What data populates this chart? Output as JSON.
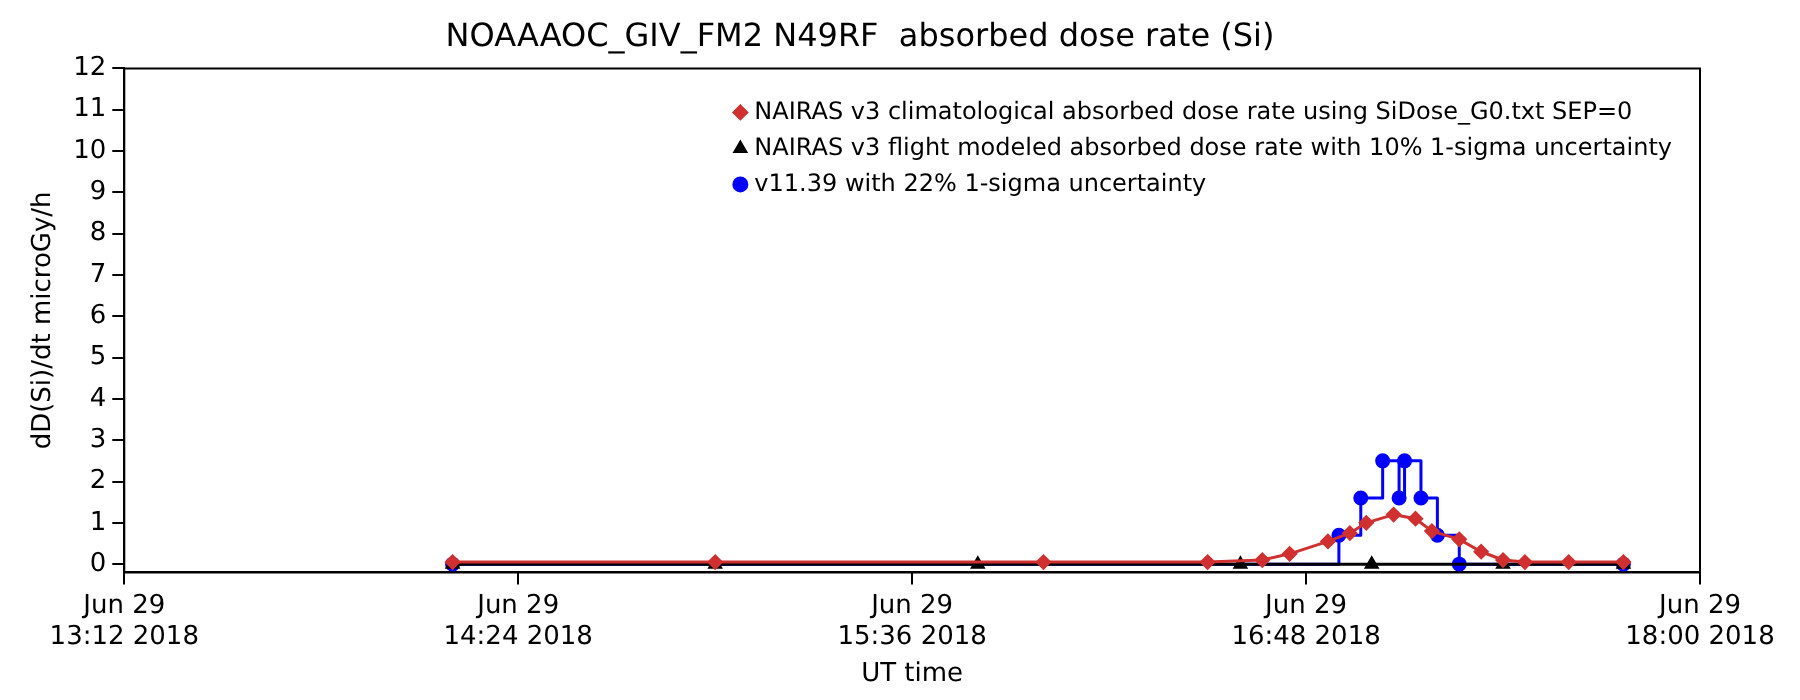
{
  "chart_data": {
    "type": "line",
    "title": "NOAAAOC_GIV_FM2 N49RF  absorbed dose rate (Si)",
    "xlabel": "UT time",
    "ylabel": "dD(Si)/dt microGy/h",
    "xlim": [
      "2018-06-29T13:12",
      "2018-06-29T18:00"
    ],
    "xticks": [
      {
        "value": "2018-06-29T13:12",
        "label": "Jun 29\n13:12 2018"
      },
      {
        "value": "2018-06-29T14:24",
        "label": "Jun 29\n14:24 2018"
      },
      {
        "value": "2018-06-29T15:36",
        "label": "Jun 29\n15:36 2018"
      },
      {
        "value": "2018-06-29T16:48",
        "label": "Jun 29\n16:48 2018"
      },
      {
        "value": "2018-06-29T18:00",
        "label": "Jun 29\n18:00 2018"
      }
    ],
    "ylim": [
      -0.2,
      12
    ],
    "yticks": [
      0,
      1,
      2,
      3,
      4,
      5,
      6,
      7,
      8,
      9,
      10,
      11,
      12
    ],
    "legend": "top right",
    "series": [
      {
        "name": "NAIRAS v3 climatological absorbed dose rate using SiDose_G0.txt SEP=0",
        "color": "#d03030",
        "marker": "diamond",
        "x": [
          "2018-06-29T14:12",
          "2018-06-29T15:00",
          "2018-06-29T16:00",
          "2018-06-29T16:30",
          "2018-06-29T16:40",
          "2018-06-29T16:45",
          "2018-06-29T16:52",
          "2018-06-29T16:56",
          "2018-06-29T16:59",
          "2018-06-29T17:04",
          "2018-06-29T17:08",
          "2018-06-29T17:11",
          "2018-06-29T17:16",
          "2018-06-29T17:20",
          "2018-06-29T17:24",
          "2018-06-29T17:28",
          "2018-06-29T17:36",
          "2018-06-29T17:46"
        ],
        "values": [
          0.05,
          0.05,
          0.05,
          0.05,
          0.1,
          0.25,
          0.55,
          0.75,
          1.0,
          1.2,
          1.1,
          0.8,
          0.6,
          0.3,
          0.1,
          0.05,
          0.05,
          0.05
        ]
      },
      {
        "name": "NAIRAS v3 flight modeled absorbed dose rate with 10% 1-sigma uncertainty",
        "color": "#000000",
        "marker": "triangle",
        "x": [
          "2018-06-29T14:12",
          "2018-06-29T15:00",
          "2018-06-29T15:48",
          "2018-06-29T16:36",
          "2018-06-29T17:00",
          "2018-06-29T17:24",
          "2018-06-29T17:46"
        ],
        "values": [
          0,
          0,
          0,
          0,
          0,
          0,
          0
        ]
      },
      {
        "name": "v11.39 with 22% 1-sigma uncertainty",
        "color": "#0000ff",
        "marker": "circle",
        "type": "step",
        "x": [
          "2018-06-29T14:12",
          "2018-06-29T16:54",
          "2018-06-29T16:58",
          "2018-06-29T17:02",
          "2018-06-29T17:05",
          "2018-06-29T17:06",
          "2018-06-29T17:09",
          "2018-06-29T17:12",
          "2018-06-29T17:16",
          "2018-06-29T17:46"
        ],
        "values": [
          0,
          0.7,
          1.6,
          2.5,
          1.6,
          2.5,
          1.6,
          0.7,
          0,
          0
        ]
      }
    ]
  }
}
